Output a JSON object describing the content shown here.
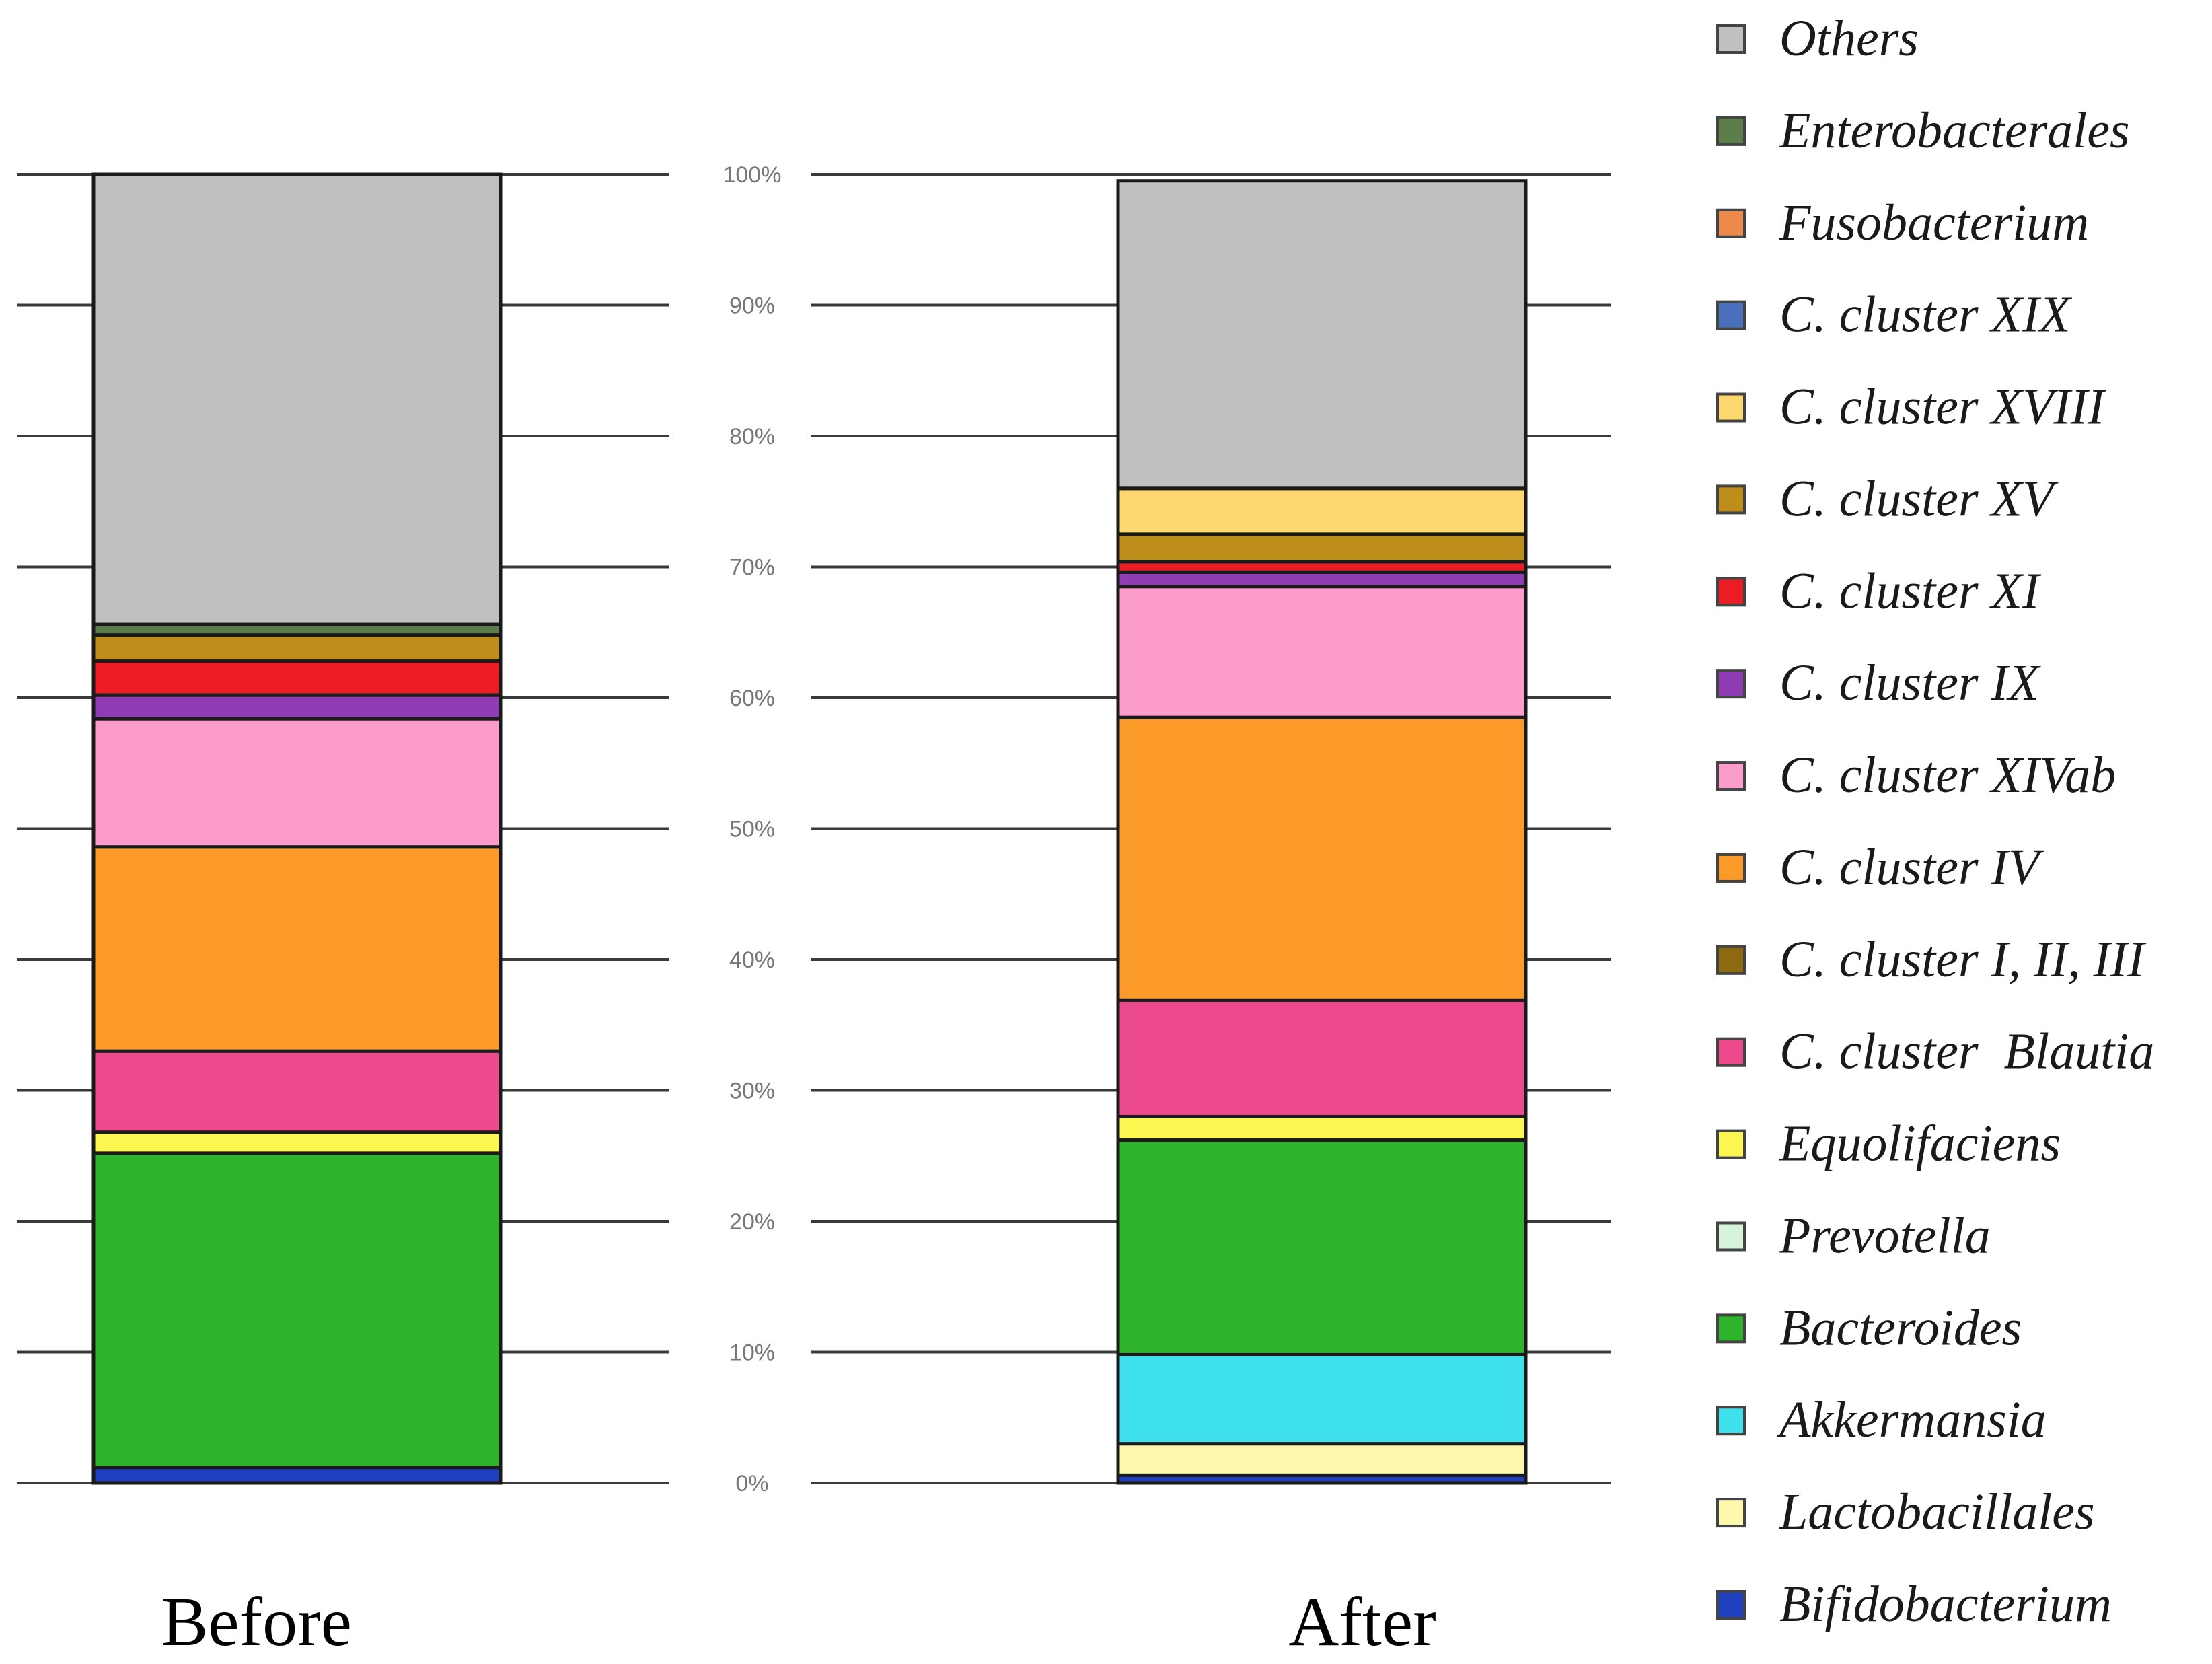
{
  "chart_data": {
    "type": "bar",
    "stacked": true,
    "title": "",
    "xlabel": "",
    "ylabel": "",
    "ylim": [
      0,
      100
    ],
    "y_ticks": [
      {
        "value": 0,
        "label": "0%"
      },
      {
        "value": 10,
        "label": "10%"
      },
      {
        "value": 20,
        "label": "20%"
      },
      {
        "value": 30,
        "label": "30%"
      },
      {
        "value": 40,
        "label": "40%"
      },
      {
        "value": 50,
        "label": "50%"
      },
      {
        "value": 60,
        "label": "60%"
      },
      {
        "value": 70,
        "label": "70%"
      },
      {
        "value": 80,
        "label": "80%"
      },
      {
        "value": 90,
        "label": "90%"
      },
      {
        "value": 100,
        "label": "100%"
      }
    ],
    "grid": true,
    "legend_position": "right",
    "categories": [
      "Before",
      "After"
    ],
    "series": [
      {
        "name": "Bifidobacterium",
        "color": "#1f3fbf",
        "values": [
          1.2,
          0.6
        ]
      },
      {
        "name": "Lactobacillales",
        "color": "#fdf7ad",
        "values": [
          0,
          2.4
        ]
      },
      {
        "name": "Akkermansia",
        "color": "#3ee0ec",
        "values": [
          0,
          6.8
        ]
      },
      {
        "name": "Bacteroides",
        "color": "#2eb42c",
        "values": [
          24.0,
          16.4
        ]
      },
      {
        "name": "Prevotella",
        "color": "#d6f3dc",
        "values": [
          0,
          0
        ]
      },
      {
        "name": "Equolifaciens",
        "color": "#fbf650",
        "values": [
          1.6,
          1.8
        ]
      },
      {
        "name": "C. cluster  Blautia",
        "color": "#ec4a8c",
        "values": [
          6.2,
          8.9
        ]
      },
      {
        "name": "C. cluster I, II, III",
        "color": "#8d6a12",
        "values": [
          0,
          0
        ]
      },
      {
        "name": "C. cluster IV",
        "color": "#fb9a29",
        "values": [
          15.6,
          21.6
        ]
      },
      {
        "name": "C. cluster XIVab",
        "color": "#fb9cca",
        "values": [
          9.8,
          10.0
        ]
      },
      {
        "name": "C. cluster IX",
        "color": "#8f3cb5",
        "values": [
          1.8,
          1.1
        ]
      },
      {
        "name": "C. cluster XI",
        "color": "#ec1c24",
        "values": [
          2.6,
          0.8
        ]
      },
      {
        "name": "C. cluster XV",
        "color": "#bd8e1a",
        "values": [
          2.0,
          2.1
        ]
      },
      {
        "name": "C. cluster XVIII",
        "color": "#fdd871",
        "values": [
          0,
          3.5
        ]
      },
      {
        "name": "C. cluster XIX",
        "color": "#4a6fbc",
        "values": [
          0,
          0
        ]
      },
      {
        "name": "Fusobacterium",
        "color": "#ec8a4c",
        "values": [
          0,
          0
        ]
      },
      {
        "name": "Enterobacterales",
        "color": "#5a7d4a",
        "values": [
          0.8,
          0
        ]
      },
      {
        "name": "Others",
        "color": "#c0c0c0",
        "values": [
          34.4,
          23.5
        ]
      }
    ]
  }
}
